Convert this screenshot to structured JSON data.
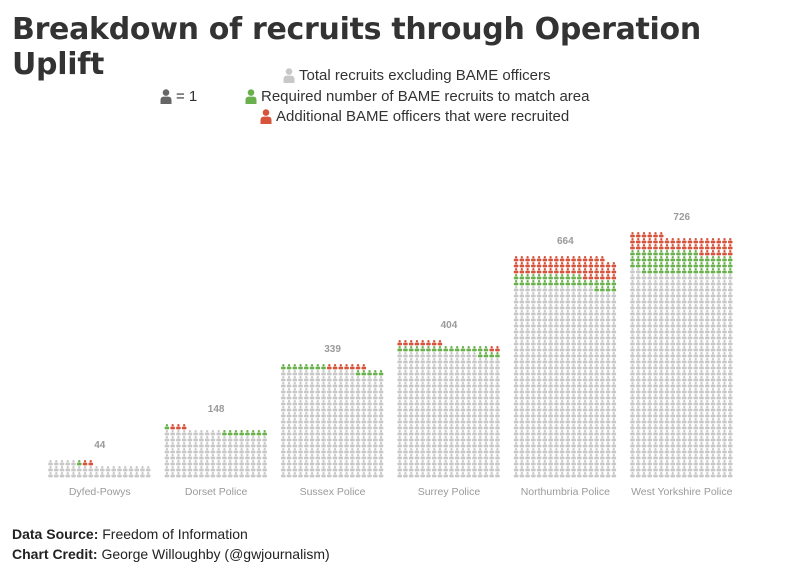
{
  "title": "Breakdown of recruits through Operation Uplift",
  "legend": {
    "unit_label": "= 1",
    "total_label": "Total recruits excluding BAME officers",
    "required_label": "Required number of BAME recruits to match area",
    "additional_label": "Additional BAME officers that were recruited"
  },
  "colors": {
    "total": "#c8c8c8",
    "required": "#6ab04c",
    "additional": "#d6533c",
    "unit": "#666666",
    "value_label": "#9a9a9a",
    "force_label": "#9a9a9a"
  },
  "icon_name": "person-icon",
  "chart_data": {
    "type": "pictograph",
    "unit": "1 recruit = 1 icon",
    "categories": [
      "Dyfed-Powys",
      "Dorset Police",
      "Sussex Police",
      "Surrey Police",
      "Northumbria Police",
      "West Yorkshire Police"
    ],
    "totals": [
      44,
      148,
      339,
      404,
      664,
      726
    ],
    "series": [
      {
        "name": "Total recruits excluding BAME officers",
        "key": "total",
        "values": [
          41,
          136,
          319,
          374,
          572,
          614
        ]
      },
      {
        "name": "Required number of BAME recruits to match area",
        "key": "required",
        "values": [
          1,
          9,
          13,
          20,
          34,
          64
        ]
      },
      {
        "name": "Additional BAME officers that were recruited",
        "key": "additional",
        "values": [
          2,
          3,
          7,
          10,
          58,
          48
        ]
      }
    ]
  },
  "footer": {
    "source_label": "Data Source:",
    "source_value": "Freedom of Information",
    "credit_label": "Chart Credit:",
    "credit_value": "George Willoughby (@gwjournalism)"
  }
}
